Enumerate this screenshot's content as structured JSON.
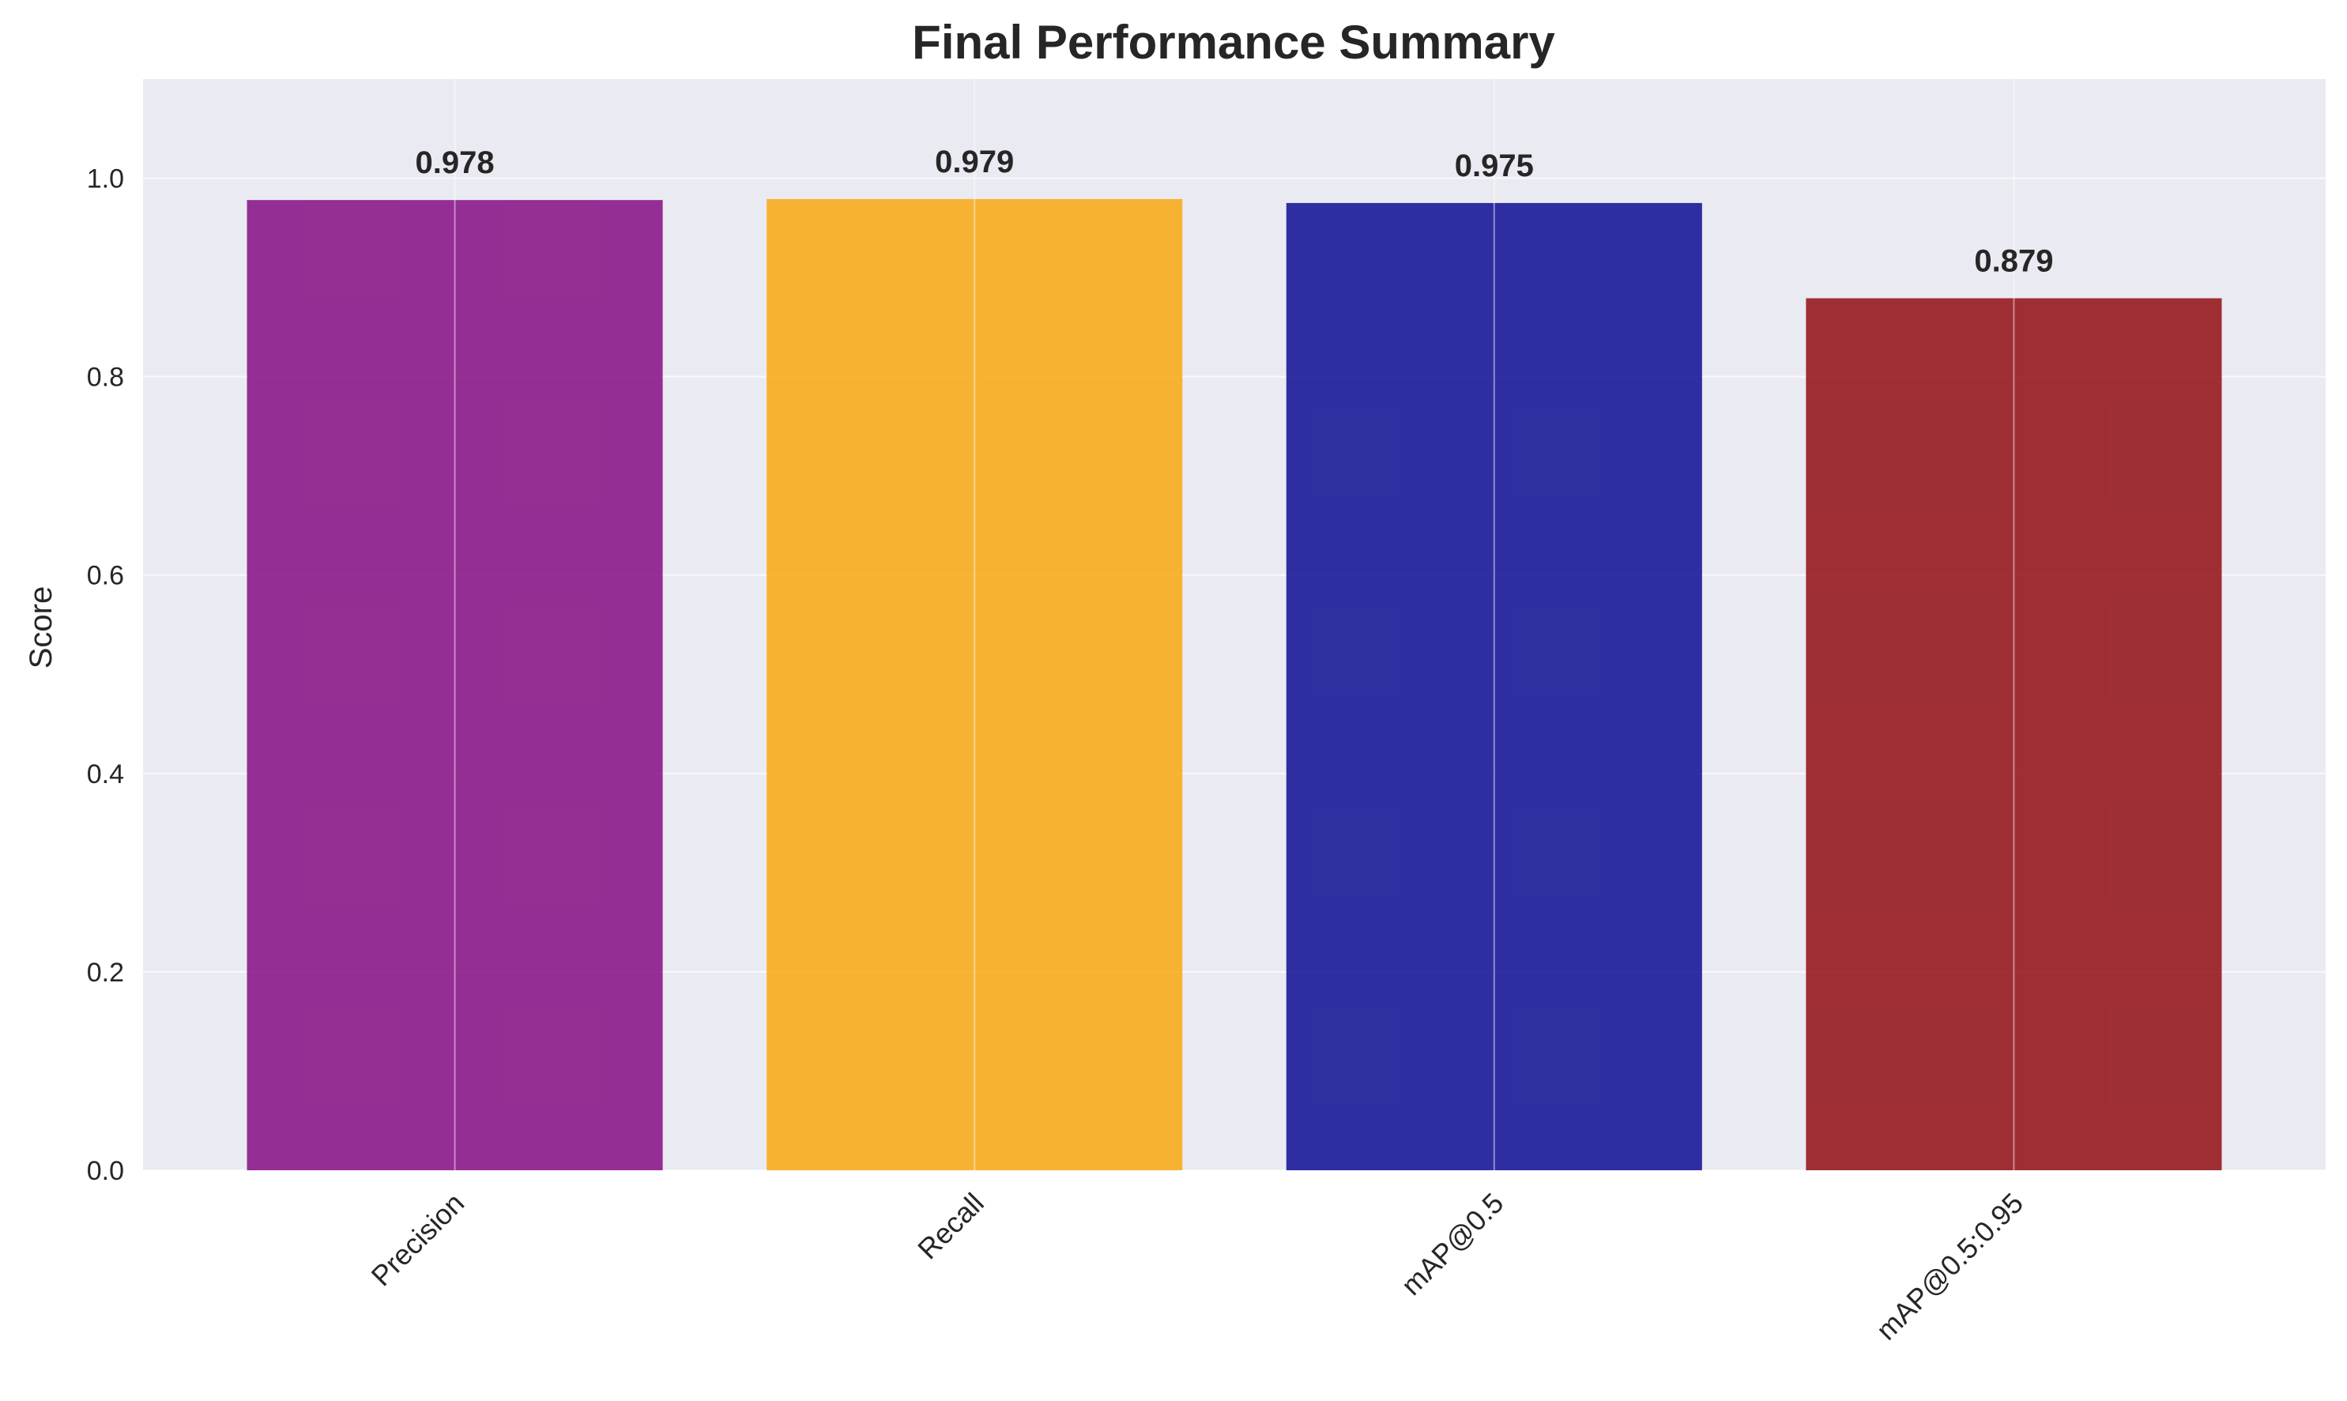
{
  "chart_data": {
    "type": "bar",
    "title": "Final Performance Summary",
    "xlabel": "",
    "ylabel": "Score",
    "categories": [
      "Precision",
      "Recall",
      "mAP@0.5",
      "mAP@0.5:0.95"
    ],
    "values": [
      0.978,
      0.979,
      0.975,
      0.879
    ],
    "value_labels": [
      "0.978",
      "0.979",
      "0.975",
      "0.879"
    ],
    "colors": [
      "#8B1A89",
      "#F8AC1F",
      "#1A1A99",
      "#961A1E"
    ],
    "ylim": [
      0,
      1.1
    ],
    "yticks": [
      0.0,
      0.2,
      0.4,
      0.6,
      0.8,
      1.0
    ],
    "ytick_labels": [
      "0.0",
      "0.2",
      "0.4",
      "0.6",
      "0.8",
      "1.0"
    ],
    "grid": true,
    "legend": "none",
    "plot_background": "#EAEAF2",
    "grid_color": "#FFFFFF",
    "text_color": "#262626"
  }
}
